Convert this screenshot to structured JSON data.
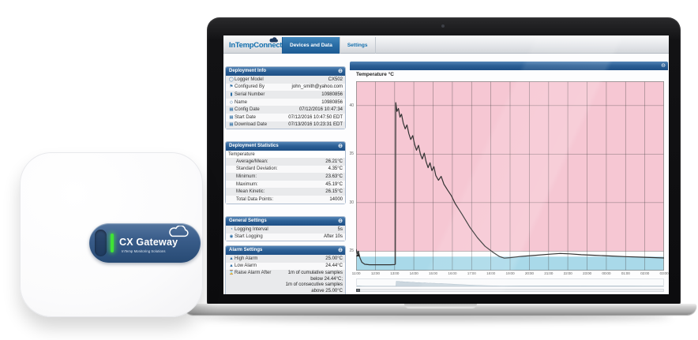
{
  "device": {
    "label": "CX Gateway",
    "sublabel": "InTemp Monitoring Solutions",
    "led_color": "#3fe335"
  },
  "app": {
    "logo": "InTempConnect",
    "logo_tm": "™",
    "tabs": [
      {
        "label": "Devices and Data",
        "active": true
      },
      {
        "label": "Settings",
        "active": false
      }
    ]
  },
  "panels": {
    "deployment_info": {
      "title": "Deployment Info",
      "collapse_glyph": "⊖",
      "rows": [
        {
          "icon": "logger-icon",
          "label": "Logger Model",
          "value": "CX502"
        },
        {
          "icon": "flag-icon",
          "label": "Configured By",
          "value": "john_smith@yahoo.com"
        },
        {
          "icon": "barcode-icon",
          "label": "Serial Number",
          "value": "10980856"
        },
        {
          "icon": "tag-icon",
          "label": "Name",
          "value": "10980856"
        },
        {
          "icon": "calendar-icon",
          "label": "Config Date",
          "value": "07/12/2016 10:47:34"
        },
        {
          "icon": "calendar-icon",
          "label": "Start Date",
          "value": "07/12/2016 10:47:50 EDT"
        },
        {
          "icon": "calendar-icon",
          "label": "Download Date",
          "value": "07/13/2016 10:23:31 EDT"
        }
      ]
    },
    "deployment_statistics": {
      "title": "Deployment Statistics",
      "group": "Temperature",
      "rows": [
        {
          "label": "Average/Mean:",
          "value": "26.21°C"
        },
        {
          "label": "Standard Deviation:",
          "value": "4.35°C"
        },
        {
          "label": "Minimum:",
          "value": "23.63°C"
        },
        {
          "label": "Maximum:",
          "value": "45.19°C"
        },
        {
          "label": "Mean Kinetic:",
          "value": "26.15°C"
        },
        {
          "label": "Total Data Points:",
          "value": "14000"
        }
      ]
    },
    "general_settings": {
      "title": "General Settings",
      "rows": [
        {
          "icon": "clock-icon",
          "label": "Logging Interval",
          "value": "5s"
        },
        {
          "icon": "play-icon",
          "label": "Start Logging",
          "value": "After 10s"
        }
      ]
    },
    "alarm_settings": {
      "title": "Alarm Settings",
      "rows": [
        {
          "icon": "bell-icon",
          "label": "High Alarm",
          "value": "25.00°C"
        },
        {
          "icon": "bell-icon",
          "label": "Low Alarm",
          "value": "24.44°C"
        }
      ],
      "raise_after": {
        "label": "Raise Alarm After",
        "line1": "1m of cumulative samples",
        "line2": "below 24.44°C;",
        "line3": "1m of consecutive samples",
        "line4": "above 25.00°C"
      }
    }
  },
  "chart_data": {
    "type": "line",
    "title": "Temperature °C",
    "x_ticks": [
      "11:00",
      "12:00",
      "13:00",
      "14:00",
      "15:00",
      "16:00",
      "17:00",
      "18:00",
      "19:00",
      "20:00",
      "21:00",
      "22:00",
      "23:00",
      "00:00",
      "01:00",
      "02:00",
      "03:00"
    ],
    "x_range_hours": [
      11,
      27
    ],
    "ylim": [
      23,
      42.5
    ],
    "yticks": [
      25,
      30,
      35,
      40
    ],
    "high_alarm": 25.0,
    "low_alarm": 24.44,
    "grid": true,
    "legend": "none",
    "band_colors": {
      "above_high": "#f6c7d3",
      "between": "#ffffff",
      "below_low": "#a9d9e9"
    },
    "line_color": "#333333",
    "markers": [
      [
        11.1,
        24.6
      ]
    ],
    "series": [
      {
        "name": "Temperature",
        "points": [
          [
            11.0,
            25.2
          ],
          [
            11.06,
            24.75
          ],
          [
            11.12,
            25.0
          ],
          [
            11.2,
            24.3
          ],
          [
            11.3,
            23.85
          ],
          [
            11.45,
            23.65
          ],
          [
            11.7,
            23.6
          ],
          [
            12.2,
            23.6
          ],
          [
            12.8,
            23.6
          ],
          [
            13.0,
            23.62
          ],
          [
            13.04,
            23.66
          ],
          [
            13.06,
            40.3
          ],
          [
            13.12,
            39.4
          ],
          [
            13.2,
            39.7
          ],
          [
            13.28,
            38.8
          ],
          [
            13.36,
            39.1
          ],
          [
            13.45,
            38.2
          ],
          [
            13.55,
            37.6
          ],
          [
            13.64,
            38.0
          ],
          [
            13.74,
            37.1
          ],
          [
            13.84,
            36.5
          ],
          [
            13.94,
            36.9
          ],
          [
            14.04,
            36.0
          ],
          [
            14.14,
            35.4
          ],
          [
            14.24,
            35.9
          ],
          [
            14.34,
            35.0
          ],
          [
            14.44,
            34.5
          ],
          [
            14.54,
            35.1
          ],
          [
            14.64,
            34.2
          ],
          [
            14.74,
            33.6
          ],
          [
            14.84,
            34.1
          ],
          [
            14.94,
            33.3
          ],
          [
            15.04,
            33.7
          ],
          [
            15.14,
            32.8
          ],
          [
            15.28,
            32.3
          ],
          [
            15.42,
            32.7
          ],
          [
            15.56,
            31.9
          ],
          [
            15.75,
            31.3
          ],
          [
            15.95,
            30.7
          ],
          [
            16.15,
            29.9
          ],
          [
            16.5,
            28.8
          ],
          [
            16.9,
            27.5
          ],
          [
            17.3,
            26.4
          ],
          [
            17.7,
            25.5
          ],
          [
            18.1,
            24.9
          ],
          [
            18.45,
            24.45
          ],
          [
            18.7,
            24.28
          ],
          [
            19.0,
            24.33
          ],
          [
            19.5,
            24.45
          ],
          [
            20.2,
            24.55
          ],
          [
            21.0,
            24.68
          ],
          [
            21.6,
            24.76
          ],
          [
            22.1,
            24.72
          ],
          [
            22.7,
            24.63
          ],
          [
            23.4,
            24.58
          ],
          [
            24.2,
            24.5
          ],
          [
            25.0,
            24.44
          ],
          [
            26.0,
            24.37
          ],
          [
            27.0,
            24.3
          ]
        ]
      }
    ]
  }
}
